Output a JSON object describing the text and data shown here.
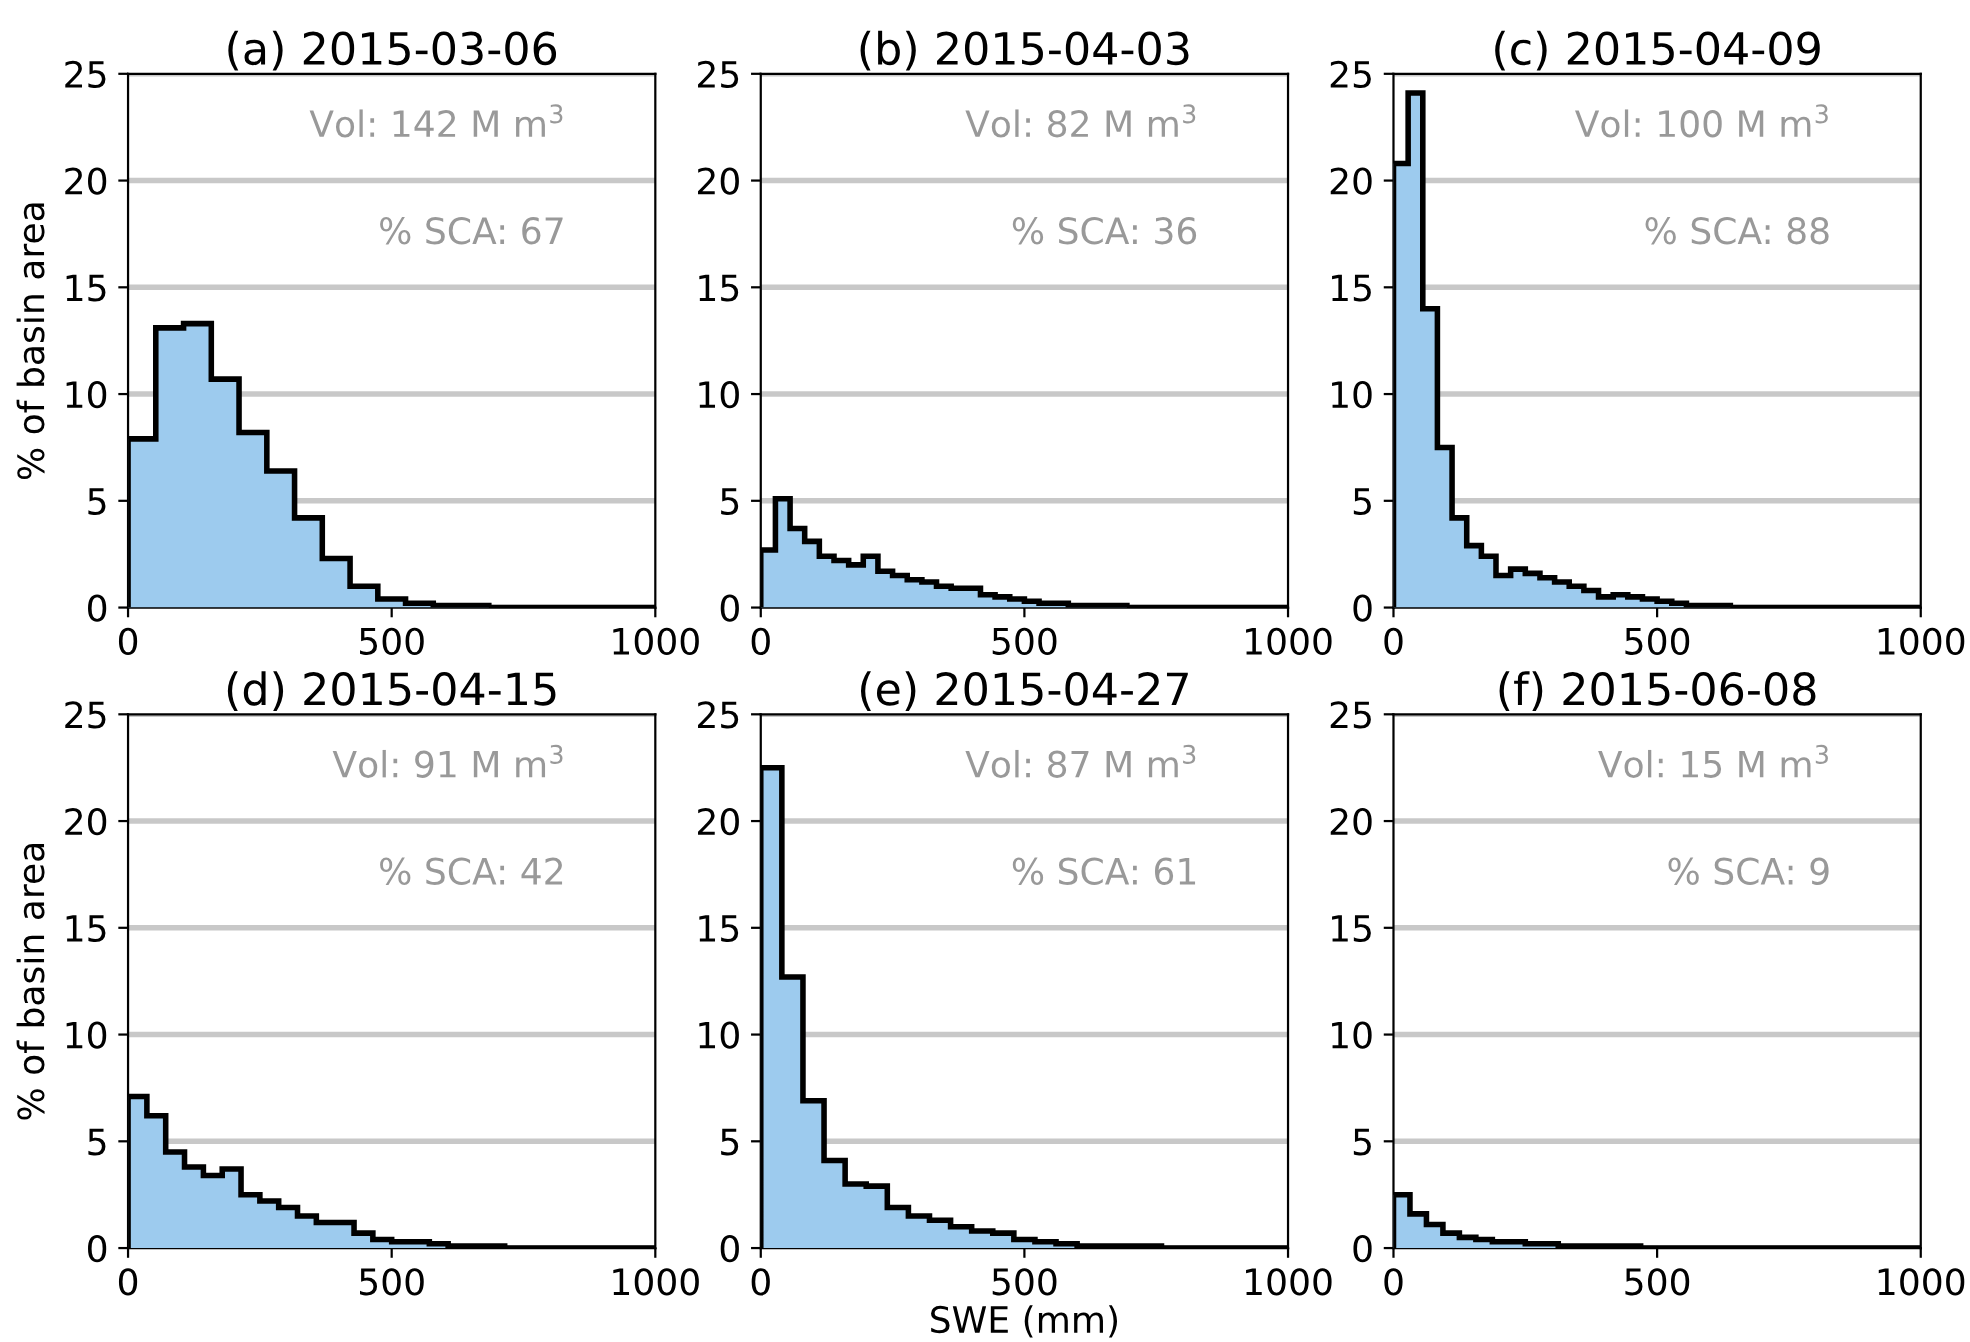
{
  "chart_data": [
    {
      "type": "histogram",
      "title": "(a) 2015-03-06",
      "ylabel": "% of basin area",
      "color": "#9dcbee",
      "xlim": [
        0,
        1000
      ],
      "ylim": [
        0,
        25
      ],
      "xticks": [
        0,
        500,
        1000
      ],
      "yticks": [
        0,
        5,
        10,
        15,
        20,
        25
      ],
      "grid": "y",
      "annotations": [
        "Vol: 142 M m$^{3}$",
        "% SCA: 67"
      ],
      "bins": [
        0,
        52.6,
        105.3,
        157.9,
        210.5,
        263.2,
        315.8,
        368.4,
        421.1,
        473.7,
        526.3,
        578.9,
        631.6,
        684.2,
        736.8,
        789.5,
        842.1,
        894.7,
        947.4,
        1000
      ],
      "values": [
        7.9,
        13.1,
        13.3,
        10.7,
        8.2,
        6.4,
        4.2,
        2.3,
        1.0,
        0.4,
        0.2,
        0.1,
        0.1,
        0,
        0,
        0,
        0,
        0,
        0
      ]
    },
    {
      "type": "histogram",
      "title": "(b) 2015-04-03",
      "color": "#9dcbee",
      "xlim": [
        0,
        1000
      ],
      "ylim": [
        0,
        25
      ],
      "xticks": [
        0,
        500,
        1000
      ],
      "yticks": [
        0,
        5,
        10,
        15,
        20,
        25
      ],
      "grid": "y",
      "annotations": [
        "Vol: 82 M m$^{3}$",
        "% SCA: 36"
      ],
      "bins": [
        0,
        27.8,
        55.6,
        83.3,
        111.1,
        138.9,
        166.7,
        194.4,
        222.2,
        250,
        277.8,
        305.6,
        333.3,
        361.1,
        388.9,
        416.7,
        444.4,
        472.2,
        500,
        527.8,
        555.6,
        583.3,
        611.1,
        638.9,
        666.7,
        694.4,
        722.2,
        750,
        777.8,
        805.6,
        833.3,
        861.1,
        888.9,
        916.7,
        944.4,
        972.2,
        1000
      ],
      "values": [
        2.7,
        5.1,
        3.7,
        3.1,
        2.4,
        2.2,
        2.0,
        2.4,
        1.7,
        1.5,
        1.3,
        1.2,
        1.0,
        0.9,
        0.9,
        0.6,
        0.5,
        0.4,
        0.3,
        0.2,
        0.2,
        0.1,
        0.1,
        0.1,
        0.1,
        0,
        0,
        0,
        0,
        0,
        0,
        0,
        0,
        0,
        0,
        0
      ]
    },
    {
      "type": "histogram",
      "title": "(c) 2015-04-09",
      "color": "#9dcbee",
      "xlim": [
        0,
        1000
      ],
      "ylim": [
        0,
        25
      ],
      "xticks": [
        0,
        500,
        1000
      ],
      "yticks": [
        0,
        5,
        10,
        15,
        20,
        25
      ],
      "grid": "y",
      "annotations": [
        "Vol: 100 M m$^{3}$",
        "% SCA: 88"
      ],
      "bins": [
        0,
        27.8,
        55.6,
        83.3,
        111.1,
        138.9,
        166.7,
        194.4,
        222.2,
        250,
        277.8,
        305.6,
        333.3,
        361.1,
        388.9,
        416.7,
        444.4,
        472.2,
        500,
        527.8,
        555.6,
        583.3,
        611.1,
        638.9,
        666.7,
        694.4,
        722.2,
        750,
        777.8,
        805.6,
        833.3,
        861.1,
        888.9,
        916.7,
        944.4,
        972.2,
        1000
      ],
      "values": [
        20.8,
        24.1,
        14.0,
        7.5,
        4.2,
        2.9,
        2.4,
        1.5,
        1.8,
        1.6,
        1.4,
        1.2,
        1.0,
        0.8,
        0.5,
        0.6,
        0.5,
        0.4,
        0.3,
        0.2,
        0.1,
        0.1,
        0.1,
        0,
        0,
        0,
        0,
        0,
        0,
        0,
        0,
        0,
        0,
        0,
        0,
        0
      ]
    },
    {
      "type": "histogram",
      "title": "(d) 2015-04-15",
      "ylabel": "% of basin area",
      "color": "#9dcbee",
      "xlim": [
        0,
        1000
      ],
      "ylim": [
        0,
        25
      ],
      "xticks": [
        0,
        500,
        1000
      ],
      "yticks": [
        0,
        5,
        10,
        15,
        20,
        25
      ],
      "grid": "y",
      "annotations": [
        "Vol: 91 M m$^{3}$",
        "% SCA: 42"
      ],
      "bins": [
        0,
        35.7,
        71.4,
        107.1,
        142.9,
        178.6,
        214.3,
        250,
        285.7,
        321.4,
        357.1,
        392.9,
        428.6,
        464.3,
        500,
        535.7,
        571.4,
        607.1,
        642.9,
        678.6,
        714.3,
        750,
        785.7,
        821.4,
        857.1,
        892.9,
        928.6,
        964.3,
        1000
      ],
      "values": [
        7.1,
        6.2,
        4.5,
        3.8,
        3.4,
        3.7,
        2.5,
        2.2,
        1.9,
        1.5,
        1.2,
        1.2,
        0.7,
        0.4,
        0.3,
        0.3,
        0.2,
        0.1,
        0.1,
        0.1,
        0,
        0,
        0,
        0,
        0,
        0,
        0,
        0
      ]
    },
    {
      "type": "histogram",
      "title": "(e) 2015-04-27",
      "xlabel": "SWE (mm)",
      "color": "#9dcbee",
      "xlim": [
        0,
        1000
      ],
      "ylim": [
        0,
        25
      ],
      "xticks": [
        0,
        500,
        1000
      ],
      "yticks": [
        0,
        5,
        10,
        15,
        20,
        25
      ],
      "grid": "y",
      "annotations": [
        "Vol: 87 M m$^{3}$",
        "% SCA: 61"
      ],
      "bins": [
        0,
        40,
        80,
        120,
        160,
        200,
        240,
        280,
        320,
        360,
        400,
        440,
        480,
        520,
        560,
        600,
        640,
        680,
        720,
        760,
        800,
        840,
        880,
        920,
        960,
        1000
      ],
      "values": [
        22.5,
        12.7,
        6.9,
        4.1,
        3.0,
        2.9,
        1.9,
        1.5,
        1.3,
        1.0,
        0.8,
        0.7,
        0.4,
        0.3,
        0.2,
        0.1,
        0.1,
        0.1,
        0.1,
        0,
        0,
        0,
        0,
        0,
        0
      ]
    },
    {
      "type": "histogram",
      "title": "(f) 2015-06-08",
      "color": "#9dcbee",
      "xlim": [
        0,
        1000
      ],
      "ylim": [
        0,
        25
      ],
      "xticks": [
        0,
        500,
        1000
      ],
      "yticks": [
        0,
        5,
        10,
        15,
        20,
        25
      ],
      "grid": "y",
      "annotations": [
        "Vol: 15 M m$^{3}$",
        "% SCA: 9"
      ],
      "bins": [
        0,
        31.25,
        62.5,
        93.75,
        125,
        156.25,
        187.5,
        218.75,
        250,
        281.25,
        312.5,
        343.75,
        375,
        406.25,
        437.5,
        468.75,
        500,
        531.25,
        562.5,
        593.75,
        625,
        656.25,
        687.5,
        718.75,
        750,
        781.25,
        812.5,
        843.75,
        875,
        906.25,
        937.5,
        968.75,
        1000
      ],
      "values": [
        2.5,
        1.6,
        1.1,
        0.7,
        0.5,
        0.4,
        0.3,
        0.3,
        0.2,
        0.2,
        0.1,
        0.1,
        0.1,
        0.1,
        0.1,
        0,
        0,
        0,
        0,
        0,
        0,
        0,
        0,
        0,
        0,
        0,
        0,
        0,
        0,
        0,
        0,
        0
      ]
    }
  ]
}
